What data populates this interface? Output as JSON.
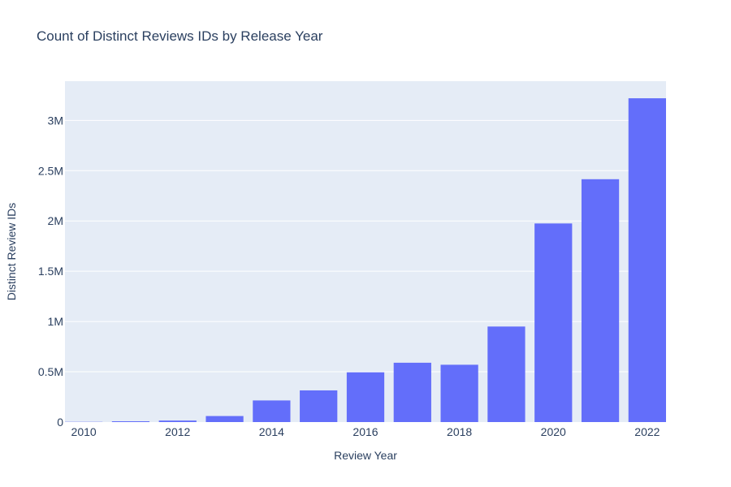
{
  "chart_data": {
    "type": "bar",
    "title": "Count of Distinct Reviews IDs by Release Year",
    "xlabel": "Review Year",
    "ylabel": "Distinct Review IDs",
    "x": [
      2010,
      2011,
      2012,
      2013,
      2014,
      2015,
      2016,
      2017,
      2018,
      2019,
      2020,
      2021,
      2022
    ],
    "values": [
      2000,
      8000,
      15000,
      60000,
      215000,
      315000,
      495000,
      590000,
      570000,
      950000,
      1975000,
      2415000,
      3220000
    ],
    "xlim": [
      2009.6,
      2022.4
    ],
    "ylim": [
      0,
      3390000
    ],
    "x_ticks": [
      2010,
      2012,
      2014,
      2016,
      2018,
      2020,
      2022
    ],
    "x_tick_labels": [
      "2010",
      "2012",
      "2014",
      "2016",
      "2018",
      "2020",
      "2022"
    ],
    "y_ticks": [
      0,
      500000,
      1000000,
      1500000,
      2000000,
      2500000,
      3000000
    ],
    "y_tick_labels": [
      "0",
      "0.5M",
      "1M",
      "1.5M",
      "2M",
      "2.5M",
      "3M"
    ],
    "grid": true,
    "legend": false,
    "colors": {
      "bar": "#636efa",
      "plot_background": "#e5ecf6",
      "gridline": "#ffffff",
      "text": "#2a3f5f"
    }
  }
}
